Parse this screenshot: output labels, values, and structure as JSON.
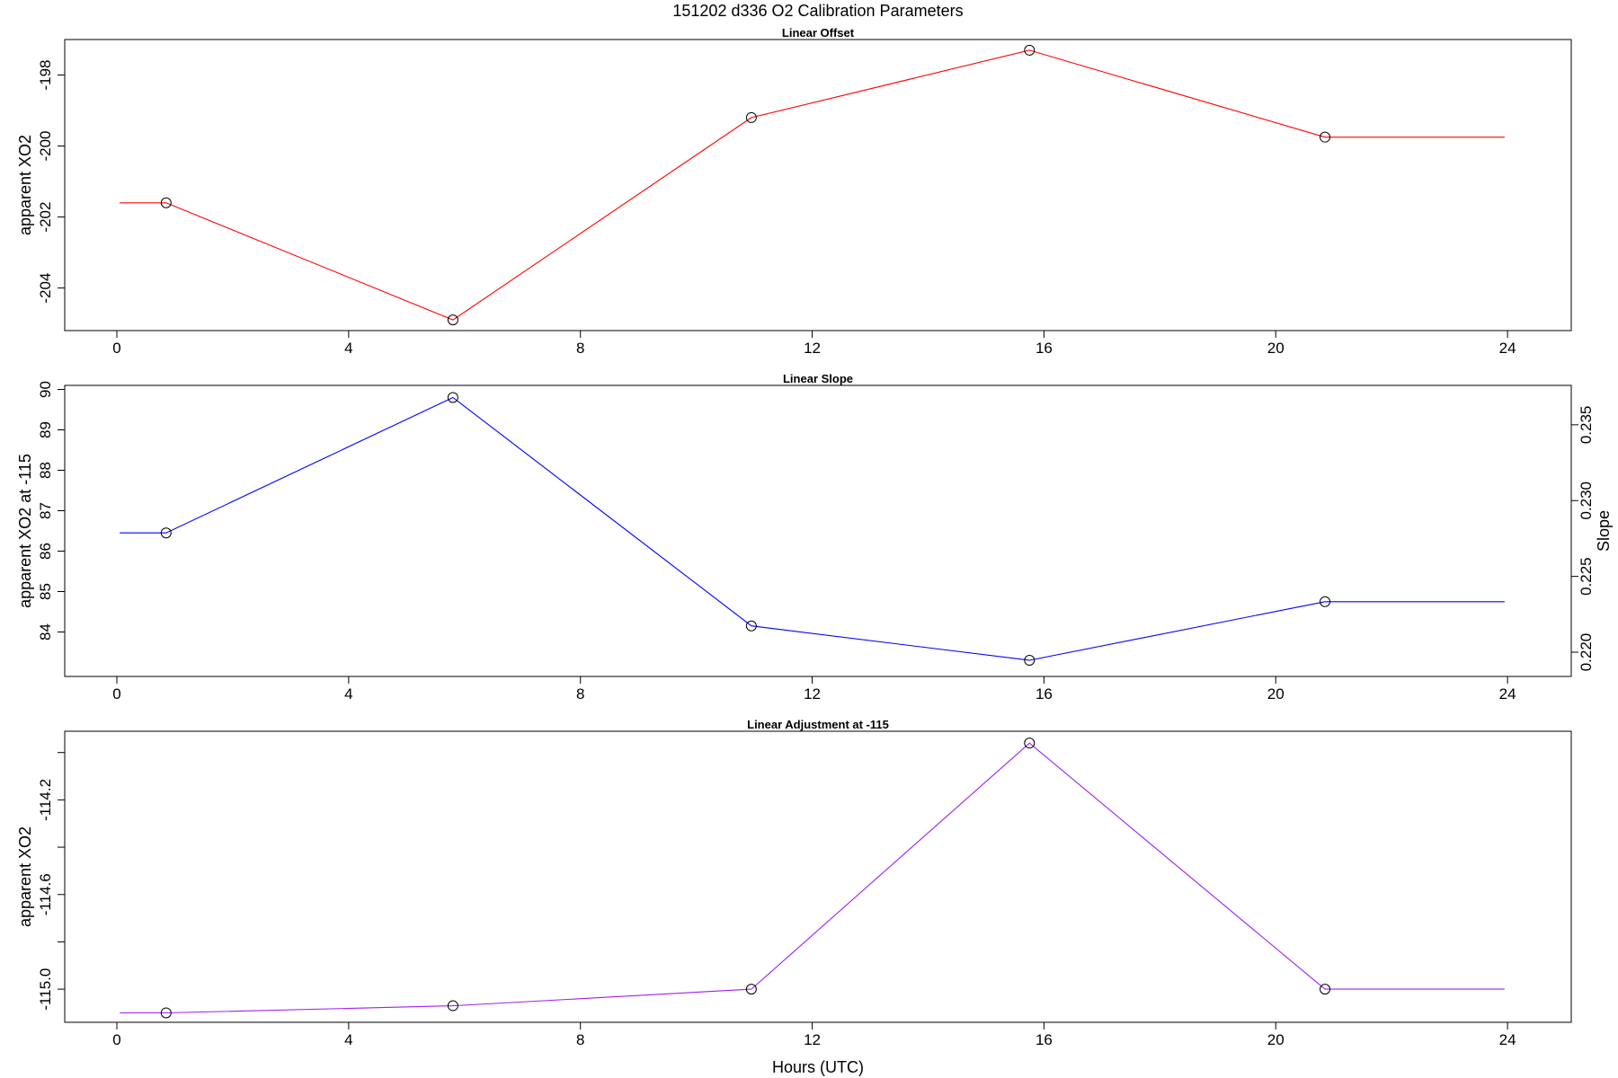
{
  "figure": {
    "title": "151202   d336   O2 Calibration Parameters",
    "xlabel": "Hours (UTC)"
  },
  "chart_data": [
    {
      "type": "line",
      "title": "Linear Offset",
      "xlabel": "Hours (UTC)",
      "ylabel": "apparent XO2",
      "xlim": [
        -0.9,
        25.1
      ],
      "ylim": [
        -205.2,
        -197.0
      ],
      "xticks": [
        0,
        4,
        8,
        12,
        16,
        20,
        24
      ],
      "xtick_labels": [
        "0",
        "4",
        "8",
        "12",
        "16",
        "20",
        "24"
      ],
      "yticks": [
        -204,
        -202,
        -200,
        -198
      ],
      "ytick_labels": [
        "-204",
        "-202",
        "-200",
        "-198"
      ],
      "line_color": "#ff0000",
      "series": [
        {
          "x": [
            0.05,
            0.85,
            5.8,
            10.95,
            15.75,
            20.85,
            23.95
          ],
          "y": [
            -201.6,
            -201.6,
            -204.9,
            -199.2,
            -197.3,
            -199.75,
            -199.75
          ],
          "markers": [
            false,
            true,
            true,
            true,
            true,
            true,
            false
          ]
        }
      ]
    },
    {
      "type": "line",
      "title": "Linear Slope",
      "xlabel": "Hours (UTC)",
      "ylabel": "apparent XO2 at -115",
      "y2label": "Slope",
      "xlim": [
        -0.9,
        25.1
      ],
      "ylim": [
        82.9,
        90.1
      ],
      "xticks": [
        0,
        4,
        8,
        12,
        16,
        20,
        24
      ],
      "xtick_labels": [
        "0",
        "4",
        "8",
        "12",
        "16",
        "20",
        "24"
      ],
      "yticks": [
        84,
        85,
        86,
        87,
        88,
        89,
        90
      ],
      "ytick_labels": [
        "84",
        "85",
        "86",
        "87",
        "88",
        "89",
        "90"
      ],
      "y2ticks": [
        0.22,
        0.225,
        0.23,
        0.235
      ],
      "y2tick_labels": [
        "0.220",
        "0.225",
        "0.230",
        "0.235"
      ],
      "y2lim": [
        0.2184,
        0.2376
      ],
      "line_color": "#0000ff",
      "series": [
        {
          "x": [
            0.05,
            0.85,
            5.8,
            10.95,
            15.75,
            20.85,
            23.95
          ],
          "y": [
            86.45,
            86.45,
            89.8,
            84.15,
            83.3,
            84.75,
            84.75
          ],
          "markers": [
            false,
            true,
            true,
            true,
            true,
            true,
            false
          ]
        }
      ]
    },
    {
      "type": "line",
      "title": "Linear Adjustment at -115",
      "xlabel": "Hours (UTC)",
      "ylabel": "apparent XO2",
      "xlim": [
        -0.9,
        25.1
      ],
      "ylim": [
        -115.14,
        -113.91
      ],
      "xticks": [
        0,
        4,
        8,
        12,
        16,
        20,
        24
      ],
      "xtick_labels": [
        "0",
        "4",
        "8",
        "12",
        "16",
        "20",
        "24"
      ],
      "yticks": [
        -115.0,
        -114.8,
        -114.6,
        -114.4,
        -114.2,
        -114.0
      ],
      "ytick_labels": [
        "-115.0",
        "",
        "-114.6",
        "",
        "-114.2",
        ""
      ],
      "line_color": "#a020f0",
      "series": [
        {
          "x": [
            0.05,
            0.85,
            5.8,
            10.95,
            15.75,
            20.85,
            23.95
          ],
          "y": [
            -115.1,
            -115.1,
            -115.07,
            -115.0,
            -113.96,
            -115.0,
            -115.0
          ],
          "markers": [
            false,
            true,
            true,
            true,
            true,
            true,
            false
          ]
        }
      ]
    }
  ]
}
